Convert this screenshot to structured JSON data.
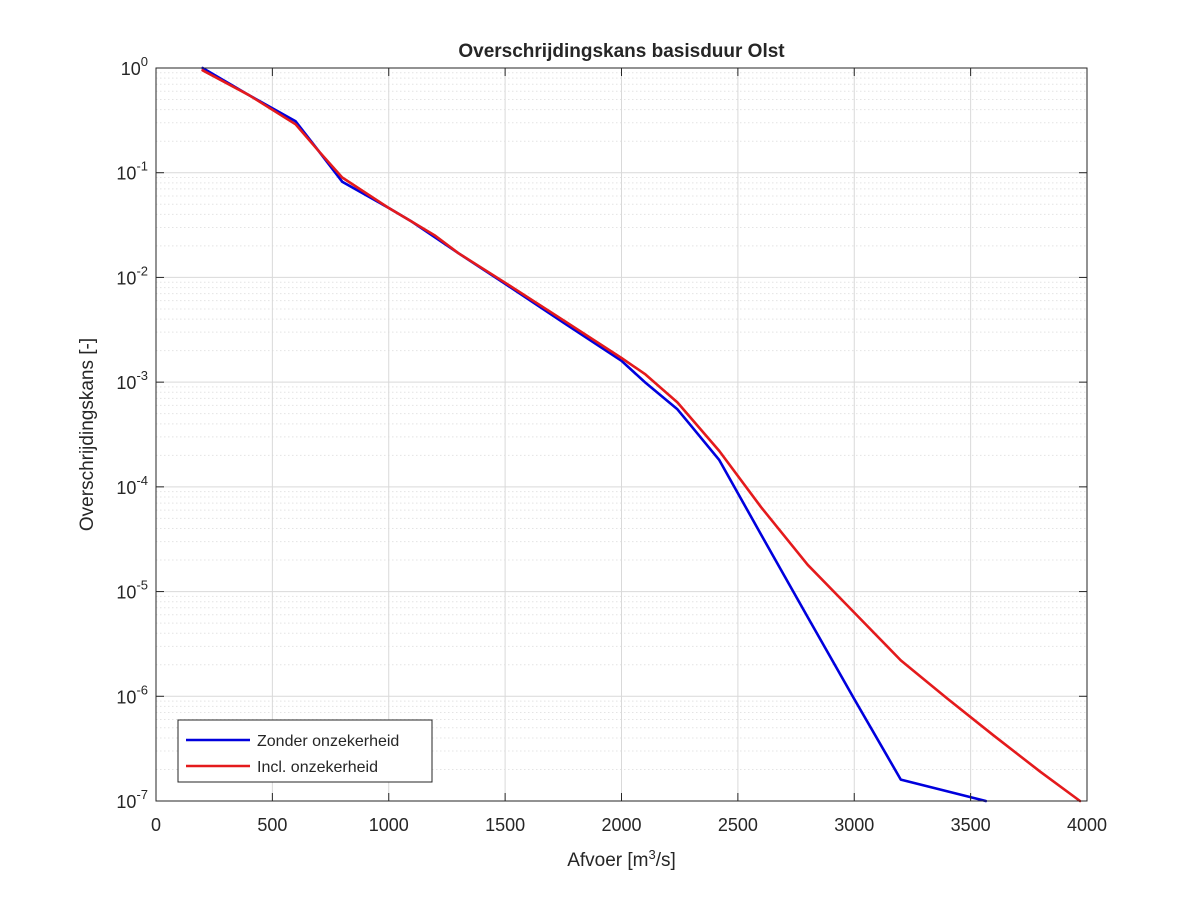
{
  "chart_data": {
    "type": "line",
    "title": "Overschrijdingskans basisduur Olst",
    "xlabel_prefix": "Afvoer [m",
    "xlabel_sup": "3",
    "xlabel_suffix": "/s]",
    "ylabel": "Overschrijdingskans [-]",
    "xlim": [
      0,
      4000
    ],
    "ylim": [
      1e-07,
      1
    ],
    "yscale": "log",
    "xticks": [
      0,
      500,
      1000,
      1500,
      2000,
      2500,
      3000,
      3500,
      4000
    ],
    "xtick_labels": [
      "0",
      "500",
      "1000",
      "1500",
      "2000",
      "2500",
      "3000",
      "3500",
      "4000"
    ],
    "yticks": [
      {
        "value": 1,
        "exponent": "0"
      },
      {
        "value": 0.1,
        "exponent": "-1"
      },
      {
        "value": 0.01,
        "exponent": "-2"
      },
      {
        "value": 0.001,
        "exponent": "-3"
      },
      {
        "value": 0.0001,
        "exponent": "-4"
      },
      {
        "value": 1e-05,
        "exponent": "-5"
      },
      {
        "value": 1e-06,
        "exponent": "-6"
      },
      {
        "value": 1e-07,
        "exponent": "-7"
      }
    ],
    "ytick_base": "10",
    "grid": true,
    "minor_grid": true,
    "legend_position": "bottom-left",
    "series": [
      {
        "name": "Zonder onzekerheid",
        "color": "#0000dd",
        "points": [
          [
            200,
            1.0
          ],
          [
            400,
            0.55
          ],
          [
            600,
            0.31
          ],
          [
            700,
            0.16
          ],
          [
            800,
            0.082
          ],
          [
            1000,
            0.046
          ],
          [
            1100,
            0.034
          ],
          [
            1200,
            0.024
          ],
          [
            1300,
            0.017
          ],
          [
            1500,
            0.0087
          ],
          [
            1750,
            0.0037
          ],
          [
            2000,
            0.0016
          ],
          [
            2100,
            0.001
          ],
          [
            2240,
            0.00055
          ],
          [
            2300,
            0.00038
          ],
          [
            2420,
            0.00018
          ],
          [
            2600,
            3.5e-05
          ],
          [
            2800,
            5.7e-06
          ],
          [
            3000,
            9.4e-07
          ],
          [
            3200,
            1.6e-07
          ],
          [
            3565,
            1e-07
          ]
        ]
      },
      {
        "name": "Incl. onzekerheid",
        "color": "#e41a1c",
        "points": [
          [
            200,
            0.95
          ],
          [
            400,
            0.55
          ],
          [
            600,
            0.29
          ],
          [
            700,
            0.16
          ],
          [
            800,
            0.09
          ],
          [
            1000,
            0.046
          ],
          [
            1100,
            0.034
          ],
          [
            1200,
            0.025
          ],
          [
            1300,
            0.017
          ],
          [
            1500,
            0.0089
          ],
          [
            1750,
            0.0039
          ],
          [
            2000,
            0.0017
          ],
          [
            2100,
            0.0012
          ],
          [
            2240,
            0.00064
          ],
          [
            2300,
            0.00045
          ],
          [
            2420,
            0.00022
          ],
          [
            2600,
            6.4e-05
          ],
          [
            2800,
            1.8e-05
          ],
          [
            3000,
            6.3e-06
          ],
          [
            3200,
            2.2e-06
          ],
          [
            3400,
            9.5e-07
          ],
          [
            3600,
            4.2e-07
          ],
          [
            3800,
            1.9e-07
          ],
          [
            3970,
            1e-07
          ]
        ]
      }
    ]
  }
}
